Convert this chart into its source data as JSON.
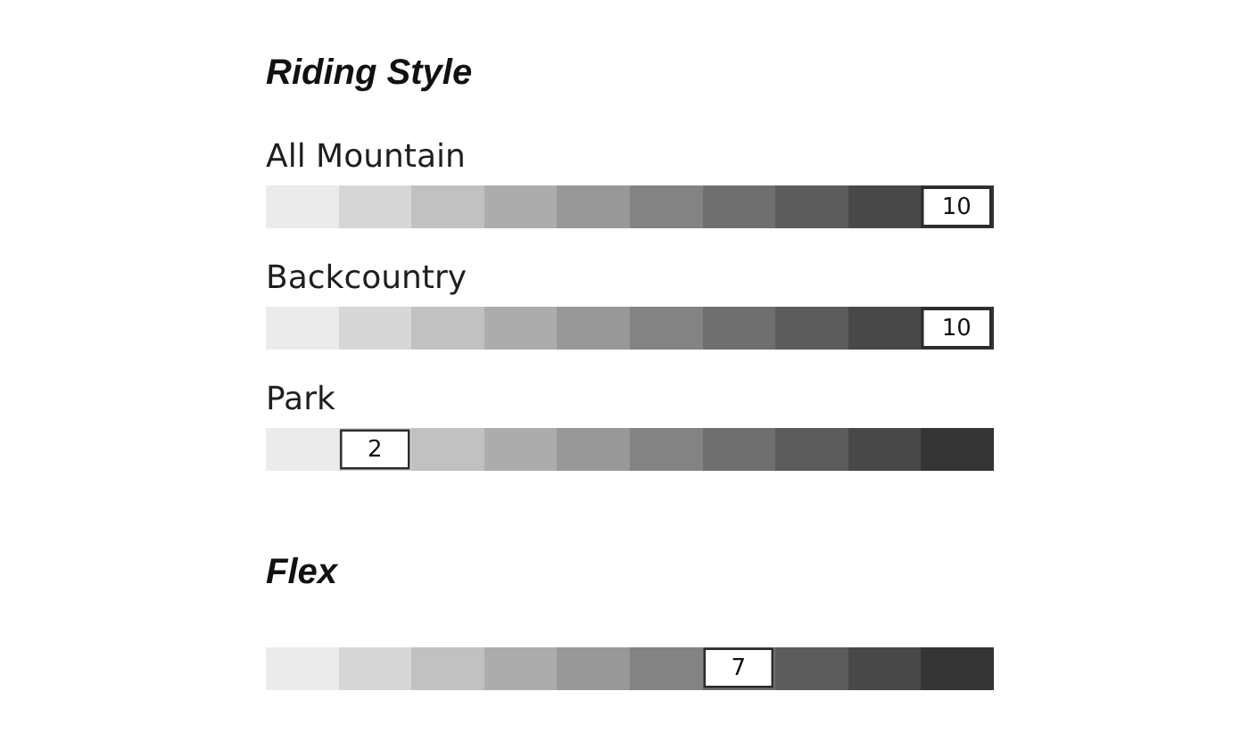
{
  "chart_data": [
    {
      "type": "other",
      "title": "Riding Style",
      "categories": [
        "All Mountain",
        "Backcountry",
        "Park"
      ],
      "values": [
        10,
        10,
        2
      ],
      "data_labels": true
    },
    {
      "type": "other",
      "title": "Flex",
      "categories": [
        null
      ],
      "values": [
        7
      ],
      "data_labels": true
    }
  ]
}
